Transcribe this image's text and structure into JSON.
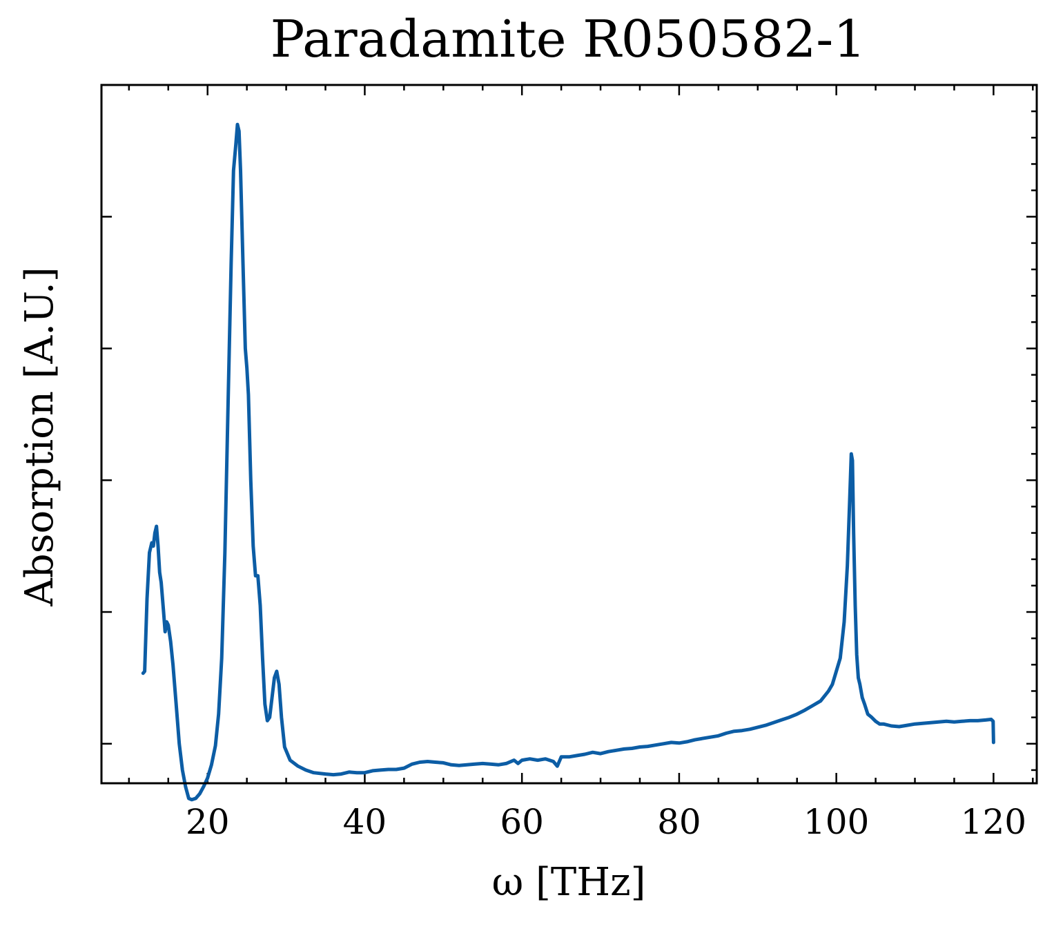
{
  "chart_data": {
    "type": "line",
    "title": "Paradamite R050582-1",
    "xlabel": "ω [THz]",
    "ylabel": "Absorption [A.U.]",
    "xlim": [
      6.5,
      125.5
    ],
    "ylim": [
      -0.06,
      1.0
    ],
    "x_ticks": [
      20,
      40,
      60,
      80,
      100,
      120
    ],
    "x_tick_labels": [
      "20",
      "40",
      "60",
      "80",
      "100",
      "120"
    ],
    "y_ticks": [
      0.0,
      0.2,
      0.4,
      0.6,
      0.8
    ],
    "y_tick_labels": [
      "",
      "",
      "",
      "",
      ""
    ],
    "grid": false,
    "color": "#0c5da5",
    "series": [
      {
        "x": [
          11.8,
          12.0,
          12.3,
          12.6,
          12.9,
          13.1,
          13.3,
          13.5,
          13.7,
          13.9,
          14.1,
          14.4,
          14.6,
          14.8,
          15.0,
          15.3,
          15.6,
          16.0,
          16.4,
          16.8,
          17.2,
          17.6,
          18.0,
          18.5,
          19.0,
          19.5,
          20.0,
          20.5,
          21.0,
          21.4,
          21.8,
          22.2,
          22.6,
          23.0,
          23.3,
          23.6,
          23.8,
          24.0,
          24.2,
          24.5,
          24.8,
          25.0,
          25.2,
          25.5,
          25.8,
          26.1,
          26.4,
          26.7,
          27.0,
          27.3,
          27.6,
          27.9,
          28.2,
          28.5,
          28.8,
          29.1,
          29.4,
          29.8,
          30.5,
          31.5,
          32.5,
          33.5,
          35.0,
          36.0,
          37.0,
          38.0,
          39.0,
          40.0,
          41.0,
          42.0,
          43.0,
          44.0,
          45.0,
          46.0,
          47.0,
          48.0,
          49.0,
          50.0,
          51.0,
          52.0,
          53.0,
          54.0,
          55.0,
          56.0,
          57.0,
          58.0,
          59.0,
          59.5,
          60.0,
          61.0,
          62.0,
          63.0,
          64.0,
          64.5,
          65.0,
          66.0,
          67.0,
          68.0,
          69.0,
          70.0,
          71.0,
          72.0,
          73.0,
          74.0,
          75.0,
          76.0,
          77.0,
          78.0,
          79.0,
          80.0,
          81.0,
          82.0,
          83.0,
          84.0,
          85.0,
          86.0,
          87.0,
          88.0,
          89.0,
          90.0,
          91.0,
          92.0,
          93.0,
          94.0,
          95.0,
          96.0,
          97.0,
          98.0,
          99.0,
          99.5,
          100.0,
          100.5,
          101.0,
          101.4,
          101.7,
          101.9,
          102.05,
          102.2,
          102.4,
          102.6,
          102.8,
          103.0,
          103.3,
          103.6,
          104.0,
          104.5,
          105.0,
          105.5,
          106.0,
          107.0,
          108.0,
          109.0,
          110.0,
          111.0,
          112.0,
          113.0,
          114.0,
          115.0,
          116.0,
          117.0,
          118.0,
          119.0,
          119.7,
          119.95,
          120.0
        ],
        "y": [
          0.107,
          0.11,
          0.22,
          0.29,
          0.305,
          0.3,
          0.32,
          0.33,
          0.3,
          0.26,
          0.245,
          0.2,
          0.17,
          0.185,
          0.18,
          0.155,
          0.12,
          0.06,
          0.0,
          -0.04,
          -0.065,
          -0.083,
          -0.085,
          -0.083,
          -0.076,
          -0.065,
          -0.052,
          -0.032,
          -0.003,
          0.045,
          0.13,
          0.29,
          0.51,
          0.73,
          0.87,
          0.91,
          0.94,
          0.93,
          0.87,
          0.73,
          0.6,
          0.57,
          0.53,
          0.4,
          0.3,
          0.255,
          0.255,
          0.21,
          0.13,
          0.06,
          0.035,
          0.04,
          0.07,
          0.1,
          0.11,
          0.09,
          0.04,
          -0.005,
          -0.025,
          -0.034,
          -0.04,
          -0.044,
          -0.046,
          -0.047,
          -0.046,
          -0.043,
          -0.044,
          -0.044,
          -0.041,
          -0.04,
          -0.039,
          -0.039,
          -0.037,
          -0.031,
          -0.028,
          -0.027,
          -0.028,
          -0.029,
          -0.032,
          -0.033,
          -0.032,
          -0.031,
          -0.03,
          -0.031,
          -0.032,
          -0.03,
          -0.025,
          -0.03,
          -0.025,
          -0.023,
          -0.025,
          -0.023,
          -0.027,
          -0.034,
          -0.02,
          -0.02,
          -0.018,
          -0.016,
          -0.013,
          -0.015,
          -0.012,
          -0.01,
          -0.008,
          -0.007,
          -0.005,
          -0.004,
          -0.002,
          0.0,
          0.002,
          0.001,
          0.003,
          0.006,
          0.008,
          0.01,
          0.012,
          0.016,
          0.019,
          0.02,
          0.022,
          0.025,
          0.028,
          0.032,
          0.036,
          0.04,
          0.045,
          0.051,
          0.058,
          0.065,
          0.08,
          0.09,
          0.11,
          0.13,
          0.185,
          0.27,
          0.37,
          0.44,
          0.43,
          0.32,
          0.21,
          0.135,
          0.1,
          0.09,
          0.07,
          0.06,
          0.045,
          0.04,
          0.034,
          0.03,
          0.03,
          0.027,
          0.026,
          0.028,
          0.03,
          0.031,
          0.032,
          0.033,
          0.034,
          0.033,
          0.034,
          0.035,
          0.035,
          0.036,
          0.037,
          0.034,
          0.002
        ]
      }
    ]
  }
}
